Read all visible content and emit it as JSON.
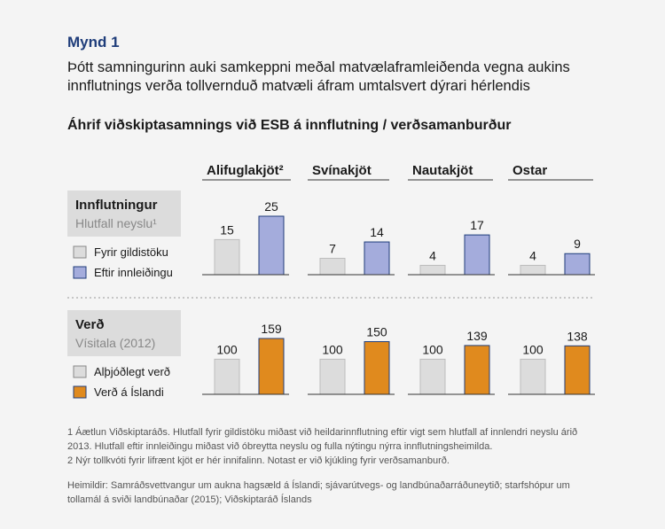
{
  "figure_label": "Mynd 1",
  "headline_lines": [
    "Þótt samningurinn auki samkeppni meðal matvælaframleiðenda vegna aukins",
    "innflutnings verða tollvernduð matvæli áfram umtalsvert dýrari hérlendis"
  ],
  "chart_title": "Áhrif viðskiptasamnings við ESB á innflutning / verðsamanburður",
  "colors": {
    "background": "#f4f4f4",
    "label_box": "#dcdcdc",
    "bar_grey": "#dcdcdc",
    "bar_blue": "#a4acdc",
    "bar_orange": "#e08a1e",
    "bar_stroke": "#1f3d7a",
    "navy": "#1f3d7a"
  },
  "chart_data": [
    {
      "type": "bar",
      "title": "Innflutningur",
      "subtitle": "Hlutfall neyslu¹",
      "categories": [
        "Alifuglakjöt²",
        "Svínakjöt",
        "Nautakjöt",
        "Ostar"
      ],
      "series": [
        {
          "name": "Fyrir gildistöku",
          "color": "#dcdcdc",
          "values": [
            15,
            7,
            4,
            4
          ]
        },
        {
          "name": "Eftir innleiðingu",
          "color": "#a4acdc",
          "values": [
            25,
            14,
            17,
            9
          ]
        }
      ],
      "ylim": [
        0,
        25
      ],
      "legend": "left"
    },
    {
      "type": "bar",
      "title": "Verð",
      "subtitle": "Vísitala (2012)",
      "categories": [
        "Alifuglakjöt²",
        "Svínakjöt",
        "Nautakjöt",
        "Ostar"
      ],
      "series": [
        {
          "name": "Alþjóðlegt verð",
          "color": "#dcdcdc",
          "values": [
            100,
            100,
            100,
            100
          ]
        },
        {
          "name": "Verð á Íslandi",
          "color": "#e08a1e",
          "values": [
            159,
            150,
            139,
            138
          ]
        }
      ],
      "ylim": [
        0,
        159
      ],
      "legend": "left"
    }
  ],
  "footnotes": [
    "1 Áætlun Viðskiptaráðs. Hlutfall fyrir gildistöku miðast við heildarinnflutning eftir vigt sem hlutfall af innlendri neyslu árið",
    "2013. Hlutfall eftir innleiðingu miðast við óbreytta neyslu og fulla nýtingu nýrra innflutningsheimilda.",
    "2 Nýr tollkvóti fyrir lifrænt kjöt er hér innifalinn. Notast er við kjúkling fyrir verðsamanburð."
  ],
  "sources": [
    "Heimildir: Samráðsvettvangur um aukna hagsæld á Íslandi; sjávarútvegs- og landbúnaðarráðuneytið; starfshópur um",
    "tollamál á sviði landbúnaðar (2015); Viðskiptaráð Íslands"
  ]
}
